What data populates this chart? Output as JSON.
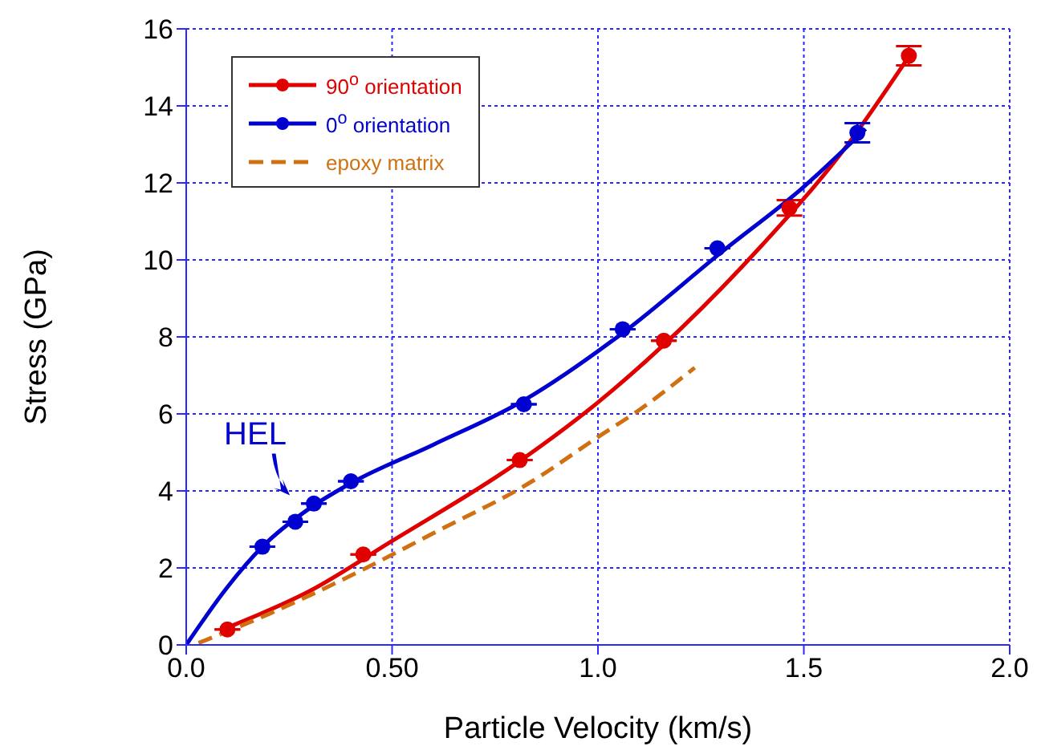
{
  "chart_data": {
    "type": "scatter",
    "xlabel": "Particle Velocity (km/s)",
    "ylabel": "Stress (GPa)",
    "xlim": [
      0,
      2
    ],
    "ylim": [
      0,
      16
    ],
    "xticks": [
      {
        "value": 0,
        "label": "0.0"
      },
      {
        "value": 0.5,
        "label": "0.50"
      },
      {
        "value": 1,
        "label": "1.0"
      },
      {
        "value": 1.5,
        "label": "1.5"
      },
      {
        "value": 2,
        "label": "2.0"
      }
    ],
    "yticks": [
      0,
      2,
      4,
      6,
      8,
      10,
      12,
      14,
      16
    ],
    "grid": true,
    "legend": "top left",
    "marker": "circle",
    "annotations": [
      {
        "text": "HEL",
        "x": 0.24,
        "y": 3.05
      }
    ],
    "series": [
      {
        "name": "90$^{o}$ orientation",
        "color": "#e00000",
        "x": [
          0.1,
          0.43,
          0.81,
          1.16,
          1.465,
          1.755
        ],
        "values": [
          0.4,
          2.35,
          4.8,
          7.9,
          11.35,
          15.3
        ],
        "errors": [
          null,
          null,
          null,
          null,
          0.2,
          0.25
        ]
      },
      {
        "type": "line",
        "color": "#e00000",
        "marker": "none",
        "x": [
          0.1,
          0.3,
          0.5,
          0.8,
          1.0,
          1.2,
          1.4,
          1.6,
          1.75
        ],
        "values": [
          0.45,
          1.4,
          2.7,
          4.7,
          6.3,
          8.2,
          10.4,
          12.9,
          15.2
        ]
      },
      {
        "name": "0$^{o}$ orientation",
        "color": "#0000d0",
        "x": [
          0.185,
          0.265,
          0.31,
          0.4,
          0.82,
          1.06,
          1.29,
          1.63
        ],
        "values": [
          2.55,
          3.2,
          3.67,
          4.25,
          6.25,
          8.2,
          10.3,
          13.3
        ],
        "errors": [
          null,
          null,
          null,
          null,
          null,
          null,
          null,
          0.25
        ]
      },
      {
        "type": "line",
        "color": "#0000d0",
        "marker": "none",
        "x": [
          0,
          0.1,
          0.185,
          0.3,
          0.4,
          0.6,
          0.82,
          1.06,
          1.3,
          1.5,
          1.65
        ],
        "values": [
          0,
          1.5,
          2.55,
          3.55,
          4.2,
          5.2,
          6.35,
          8.1,
          10.2,
          11.9,
          13.4
        ]
      },
      {
        "name": "epoxy matrix",
        "type": "line",
        "color": "#d07010",
        "marker": "none",
        "line_style": "dashed",
        "x": [
          0.03,
          0.2,
          0.4,
          0.6,
          0.84,
          1.0,
          1.1,
          1.235
        ],
        "values": [
          0.05,
          0.8,
          1.8,
          2.9,
          4.25,
          5.4,
          6.1,
          7.2
        ]
      }
    ]
  }
}
